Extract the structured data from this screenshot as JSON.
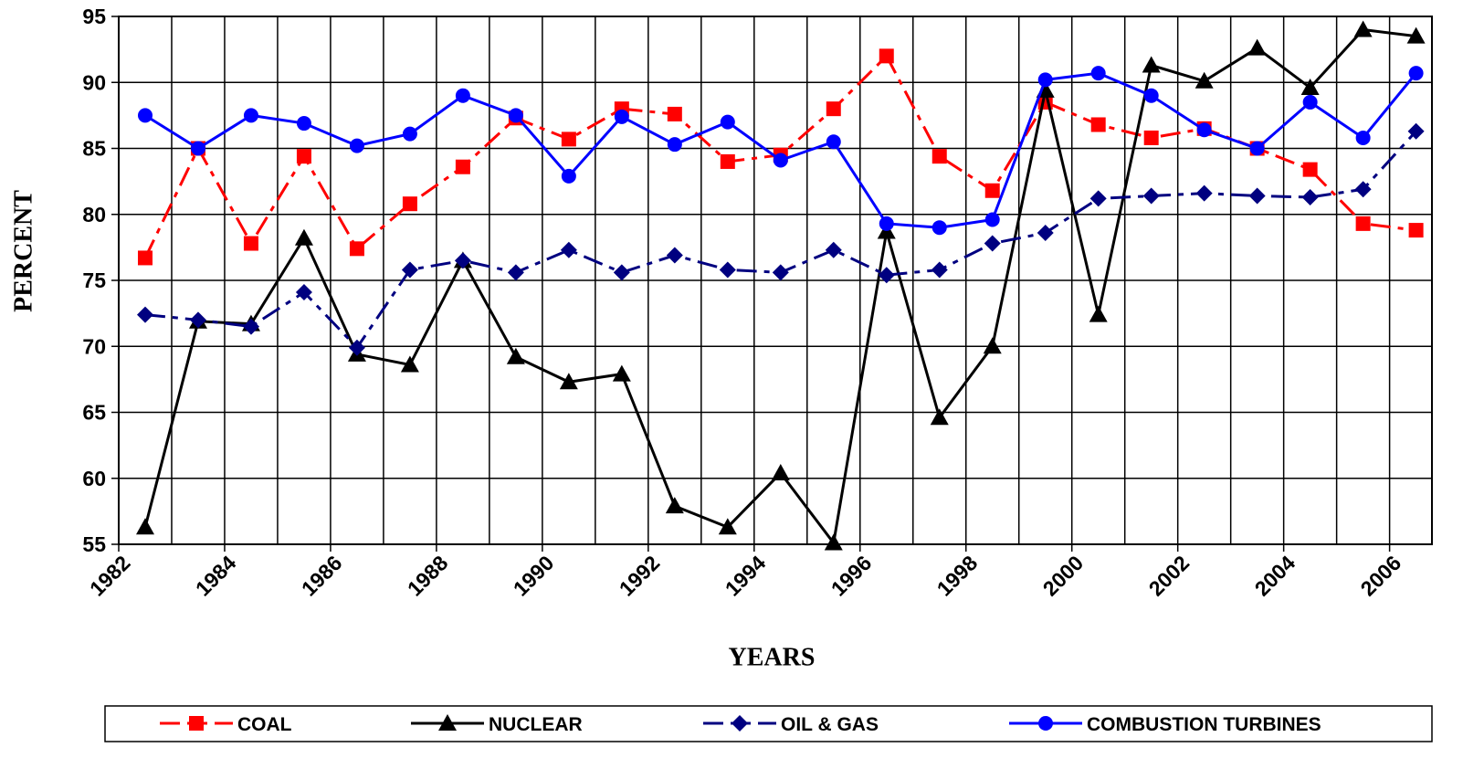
{
  "chart_data": {
    "type": "line",
    "x_axis_label": "YEARS",
    "y_axis_label": "PERCENT",
    "x": [
      1982.5,
      1983.5,
      1984.5,
      1985.5,
      1986.5,
      1987.5,
      1988.5,
      1989.5,
      1990.5,
      1991.5,
      1992.5,
      1993.5,
      1994.5,
      1995.5,
      1996.5,
      1997.5,
      1998.5,
      1999.5,
      2000.5,
      2001.5,
      2002.5,
      2003.5,
      2004.5,
      2005.5,
      2006.5
    ],
    "series": [
      {
        "name": "COAL",
        "color": "#ff0000",
        "dash": "dashed",
        "marker": "square",
        "values": [
          76.7,
          85.0,
          77.8,
          84.4,
          77.4,
          80.8,
          83.6,
          87.3,
          85.7,
          88.0,
          87.6,
          84.0,
          84.5,
          88.0,
          92.0,
          84.4,
          81.8,
          88.5,
          86.8,
          85.8,
          86.5,
          85.0,
          83.4,
          79.3,
          78.8
        ]
      },
      {
        "name": "NUCLEAR",
        "color": "#000000",
        "dash": "solid",
        "marker": "triangle",
        "values": [
          56.3,
          71.9,
          71.7,
          78.2,
          69.4,
          68.6,
          76.5,
          69.2,
          67.3,
          67.9,
          57.9,
          56.3,
          60.4,
          55.1,
          78.7,
          64.6,
          70.0,
          89.4,
          72.4,
          91.3,
          90.1,
          92.6,
          89.6,
          94.0,
          93.5
        ]
      },
      {
        "name": "OIL & GAS",
        "color": "#000080",
        "dash": "dashed",
        "marker": "diamond",
        "values": [
          72.4,
          72.0,
          71.5,
          74.1,
          69.9,
          75.8,
          76.5,
          75.6,
          77.3,
          75.6,
          76.9,
          75.8,
          75.6,
          77.3,
          75.4,
          75.8,
          77.8,
          78.6,
          81.2,
          81.4,
          81.6,
          81.4,
          81.3,
          81.9,
          86.3
        ]
      },
      {
        "name": "COMBUSTION TURBINES",
        "color": "#0000ff",
        "dash": "solid",
        "marker": "circle",
        "values": [
          87.5,
          85.0,
          87.5,
          86.9,
          85.2,
          86.1,
          89.0,
          87.5,
          82.9,
          87.4,
          85.3,
          87.0,
          84.1,
          85.5,
          79.3,
          79.0,
          79.6,
          90.2,
          90.7,
          89.0,
          86.4,
          85.0,
          88.5,
          85.8,
          90.7
        ]
      }
    ],
    "xlim": [
      1982,
      2006.8
    ],
    "xticks": [
      1982,
      1984,
      1986,
      1988,
      1990,
      1992,
      1994,
      1996,
      1998,
      2000,
      2002,
      2004,
      2006
    ],
    "x_minor_ticks": [
      1983,
      1985,
      1987,
      1989,
      1991,
      1993,
      1995,
      1997,
      1999,
      2001,
      2003,
      2005
    ],
    "ylim": [
      55,
      95
    ],
    "yticks": [
      55,
      60,
      65,
      70,
      75,
      80,
      85,
      90,
      95
    ],
    "grid": true,
    "legend": "bottom"
  }
}
